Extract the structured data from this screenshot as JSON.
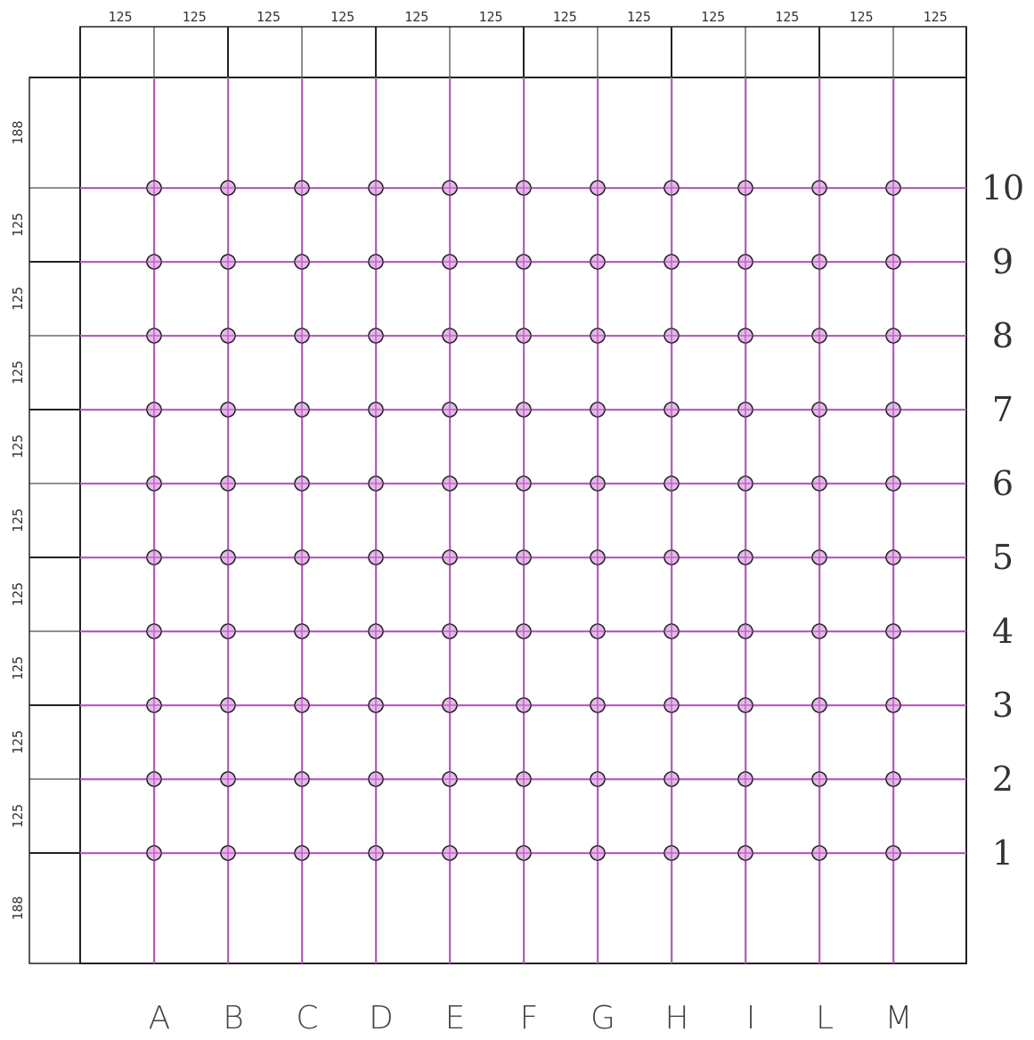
{
  "colors": {
    "grid_line": "#c060c8",
    "grid_line_dark": "#6a2a70",
    "frame": "#222222",
    "marker_fill": "#e6b8ea",
    "marker_stroke": "#222222"
  },
  "top_dimensions": [
    "125",
    "125",
    "125",
    "125",
    "125",
    "125",
    "125",
    "125",
    "125",
    "125",
    "125",
    "125"
  ],
  "left_dimensions": [
    "188",
    "125",
    "125",
    "125",
    "125",
    "125",
    "125",
    "125",
    "125",
    "125",
    "188"
  ],
  "column_labels": [
    "A",
    "B",
    "C",
    "D",
    "E",
    "F",
    "G",
    "H",
    "I",
    "L",
    "M"
  ],
  "row_labels": [
    "10",
    "9",
    "8",
    "7",
    "6",
    "5",
    "4",
    "3",
    "2",
    "1"
  ]
}
